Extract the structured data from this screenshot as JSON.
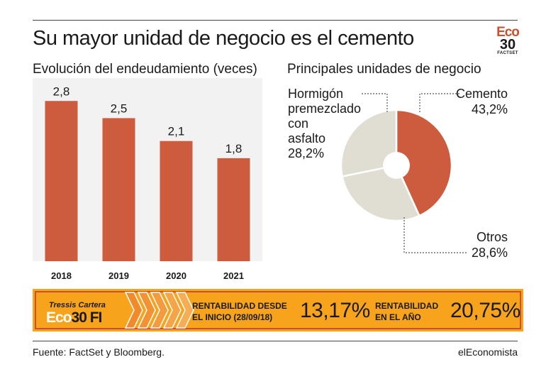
{
  "header": {
    "title": "Su mayor unidad de negocio es el cemento",
    "logo": {
      "top": "Eco",
      "number": "30",
      "provider": "FACTSET"
    }
  },
  "colors": {
    "accent": "#cd5b3e",
    "pie_light": "#e0ddd2",
    "banner": "#f7a31c",
    "banner_border": "#c8522f"
  },
  "chart_data": [
    {
      "type": "bar",
      "title": "Evolución del endeudamiento (veces)",
      "categories": [
        "2018",
        "2019",
        "2020",
        "2021"
      ],
      "values": [
        2.8,
        2.5,
        2.1,
        1.8
      ],
      "value_labels": [
        "2,8",
        "2,5",
        "2,1",
        "1,8"
      ],
      "ylim": [
        0,
        3.2
      ],
      "grid": false
    },
    {
      "type": "pie",
      "title": "Principales unidades de negocio",
      "donut": true,
      "slices": [
        {
          "label": "Cemento",
          "value": 43.2,
          "value_label": "43,2%",
          "color": "#cd5b3e"
        },
        {
          "label": "Otros",
          "value": 28.6,
          "value_label": "28,6%",
          "color": "#e0ddd2"
        },
        {
          "label": "Hormigón premezclado con asfalto",
          "value": 28.2,
          "value_label": "28,2%",
          "color": "#e0ddd2"
        }
      ]
    }
  ],
  "pie_labels": {
    "hormigon_lines": [
      "Hormigón",
      "premezclado",
      "con",
      "asfalto"
    ]
  },
  "banner": {
    "name_line1": "Tressis Cartera",
    "name_eco": "Eco",
    "name_rest": "30 FI",
    "label1_line1": "RENTABILIDAD DESDE",
    "label1_line2": "EL INICIO (28/09/18)",
    "value1": "13,17%",
    "label2_line1": "RENTABILIDAD",
    "label2_line2": "EN EL AÑO",
    "value2": "20,75%"
  },
  "footer": {
    "source": "Fuente: FactSet y Bloomberg.",
    "brand": "elEconomista"
  }
}
